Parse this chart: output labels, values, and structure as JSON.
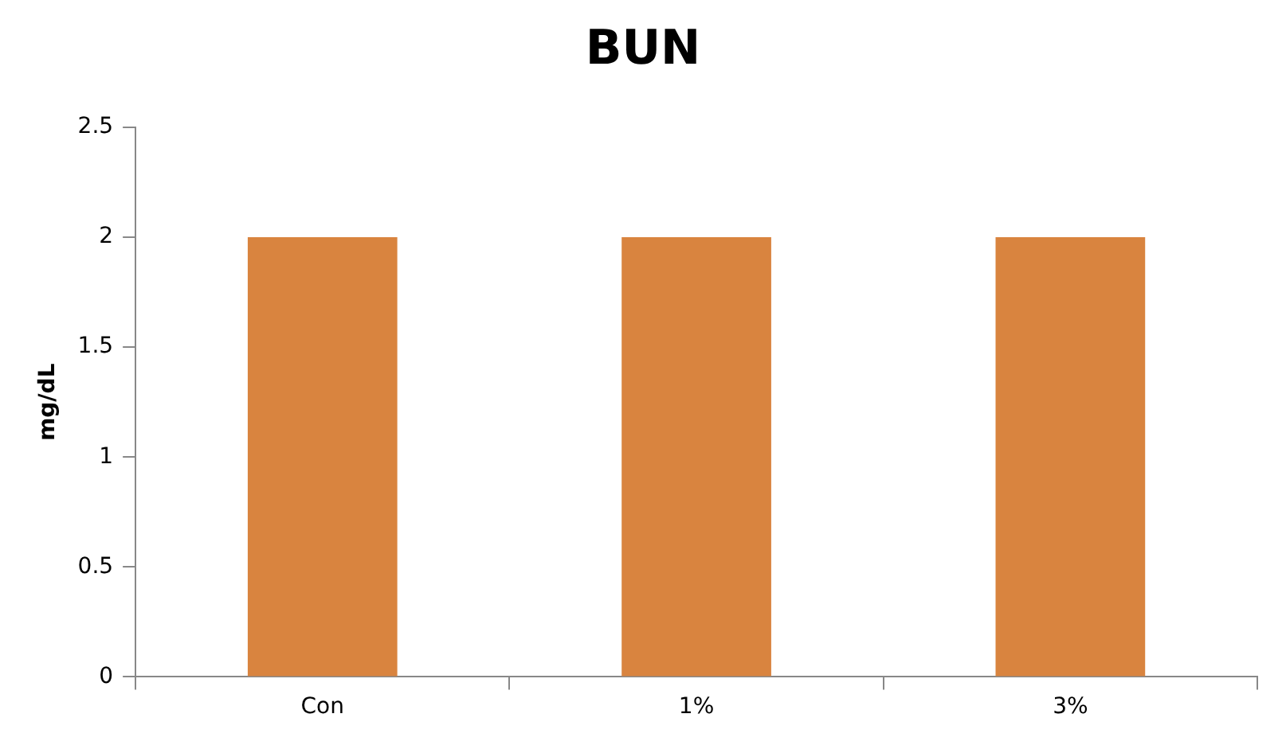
{
  "chart_data": {
    "type": "bar",
    "title": "BUN",
    "ylabel": "mg/dL",
    "categories": [
      "Con",
      "1%",
      "3%"
    ],
    "values": [
      2,
      2,
      2
    ],
    "color": "#d9843f",
    "ylim": [
      0,
      2.5
    ],
    "yticks": [
      0,
      0.5,
      1,
      1.5,
      2,
      2.5
    ],
    "grid": false,
    "legend": false
  }
}
